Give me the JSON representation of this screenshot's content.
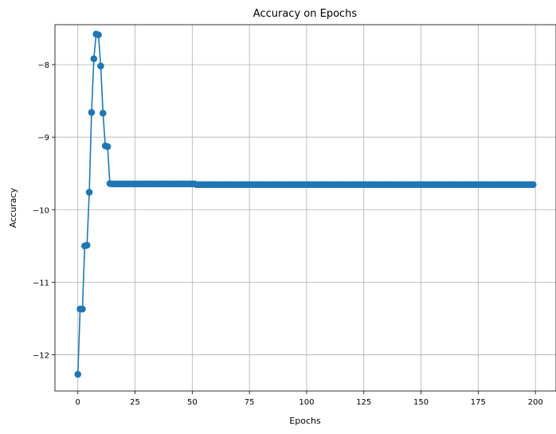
{
  "chart_data": {
    "type": "line",
    "title": "Accuracy on Epochs",
    "xlabel": "Epochs",
    "ylabel": "Accuracy",
    "xlim": [
      -10,
      209
    ],
    "ylim": [
      -12.5,
      -7.45
    ],
    "xticks": [
      0,
      25,
      50,
      75,
      100,
      125,
      150,
      175,
      200
    ],
    "yticks": [
      -12,
      -11,
      -10,
      -9,
      -8
    ],
    "ytick_labels": [
      "−12",
      "−11",
      "−10",
      "−9",
      "−8"
    ],
    "grid": true,
    "legend": "none",
    "markers": "circle",
    "series": [
      {
        "color": "#1f77b4",
        "x_start": 0,
        "x_step": 1,
        "values": [
          -12.27,
          -11.37,
          -11.37,
          -10.5,
          -10.49,
          -9.76,
          -8.66,
          -7.92,
          -7.58,
          -7.59,
          -8.02,
          -8.67,
          -9.12,
          -9.13,
          -9.64,
          -9.645,
          -9.645,
          -9.645,
          -9.645,
          -9.645,
          -9.645,
          -9.645,
          -9.645,
          -9.645,
          -9.645,
          -9.645,
          -9.645,
          -9.645,
          -9.645,
          -9.645,
          -9.645,
          -9.645,
          -9.645,
          -9.645,
          -9.645,
          -9.645,
          -9.645,
          -9.645,
          -9.645,
          -9.645,
          -9.645,
          -9.645,
          -9.645,
          -9.645,
          -9.645,
          -9.645,
          -9.645,
          -9.645,
          -9.645,
          -9.645,
          -9.645,
          -9.645,
          -9.655,
          -9.655,
          -9.655,
          -9.655,
          -9.655,
          -9.655,
          -9.655,
          -9.655,
          -9.655,
          -9.655,
          -9.655,
          -9.655,
          -9.655,
          -9.655,
          -9.655,
          -9.655,
          -9.655,
          -9.655,
          -9.655,
          -9.655,
          -9.655,
          -9.655,
          -9.655,
          -9.655,
          -9.655,
          -9.655,
          -9.655,
          -9.655,
          -9.655,
          -9.655,
          -9.655,
          -9.655,
          -9.655,
          -9.655,
          -9.655,
          -9.655,
          -9.655,
          -9.655,
          -9.655,
          -9.655,
          -9.655,
          -9.655,
          -9.655,
          -9.655,
          -9.655,
          -9.655,
          -9.655,
          -9.655,
          -9.655,
          -9.655,
          -9.655,
          -9.655,
          -9.655,
          -9.655,
          -9.655,
          -9.655,
          -9.655,
          -9.655,
          -9.655,
          -9.655,
          -9.655,
          -9.655,
          -9.655,
          -9.655,
          -9.655,
          -9.655,
          -9.655,
          -9.655,
          -9.655,
          -9.655,
          -9.655,
          -9.655,
          -9.655,
          -9.655,
          -9.655,
          -9.655,
          -9.655,
          -9.655,
          -9.655,
          -9.655,
          -9.655,
          -9.655,
          -9.655,
          -9.655,
          -9.655,
          -9.655,
          -9.655,
          -9.655,
          -9.655,
          -9.655,
          -9.655,
          -9.655,
          -9.655,
          -9.655,
          -9.655,
          -9.655,
          -9.655,
          -9.655,
          -9.655,
          -9.655,
          -9.655,
          -9.655,
          -9.655,
          -9.655,
          -9.655,
          -9.655,
          -9.655,
          -9.655,
          -9.655,
          -9.655,
          -9.655,
          -9.655,
          -9.655,
          -9.655,
          -9.655,
          -9.655,
          -9.655,
          -9.655,
          -9.655,
          -9.655,
          -9.655,
          -9.655,
          -9.655,
          -9.655,
          -9.655,
          -9.655,
          -9.655,
          -9.655,
          -9.655,
          -9.655,
          -9.655,
          -9.655,
          -9.655,
          -9.655,
          -9.655,
          -9.655,
          -9.655,
          -9.655,
          -9.655,
          -9.655,
          -9.655,
          -9.655,
          -9.655,
          -9.655,
          -9.655,
          -9.655,
          -9.655,
          -9.655
        ]
      }
    ]
  }
}
